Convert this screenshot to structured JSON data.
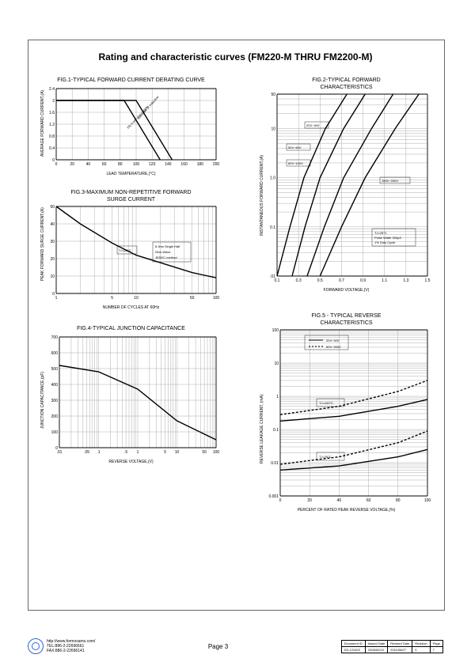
{
  "page_title": "Rating and characteristic curves (FM220-M THRU FM2200-M)",
  "fig1": {
    "title": "FIG.1-TYPICAL FORWARD CURRENT DERATING CURVE",
    "ylabel": "AVERAGE FORWARD CURRENT,(A)",
    "xlabel": "LEAD TEMPERATURE,(°C)",
    "x_ticks": [
      0,
      20,
      40,
      60,
      80,
      100,
      120,
      140,
      160,
      180,
      200
    ],
    "y_ticks": [
      0,
      0.4,
      0.8,
      1.2,
      1.6,
      2.0,
      2.4
    ],
    "ylim": [
      0,
      2.4
    ],
    "xlim": [
      0,
      200
    ],
    "series": [
      {
        "pts": [
          [
            0,
            2.0
          ],
          [
            85,
            2.0
          ],
          [
            130,
            0
          ]
        ]
      },
      {
        "pts": [
          [
            0,
            2.0
          ],
          [
            100,
            2.0
          ],
          [
            145,
            0
          ]
        ]
      }
    ],
    "anno1": "Resistive or Inductive",
    "anno2": "FR-4 with 2oz copper"
  },
  "fig2": {
    "title": "FIG.2-TYPICAL FORWARD",
    "subtitle": "CHARACTERISTICS",
    "ylabel": "INSTANTANEOUS FORWARD CURRENT,(A)",
    "xlabel": "FORWARD VOLTAGE,(V)",
    "x_ticks": [
      0.1,
      0.3,
      0.5,
      0.7,
      0.9,
      1.1,
      1.3,
      1.5
    ],
    "y_ticks": [
      0.01,
      0.1,
      1.0,
      10,
      50
    ],
    "y_labels": [
      ".01",
      "0.1",
      "1.0",
      "10",
      "50"
    ],
    "xlim": [
      0.1,
      1.5
    ],
    "ylim": [
      0.01,
      50
    ],
    "series": [
      {
        "pts": [
          [
            0.1,
            0.01
          ],
          [
            0.22,
            0.1
          ],
          [
            0.35,
            1.0
          ],
          [
            0.55,
            10
          ],
          [
            0.75,
            50
          ]
        ]
      },
      {
        "pts": [
          [
            0.24,
            0.01
          ],
          [
            0.36,
            0.1
          ],
          [
            0.5,
            1.0
          ],
          [
            0.72,
            10
          ],
          [
            0.92,
            50
          ]
        ]
      },
      {
        "pts": [
          [
            0.38,
            0.01
          ],
          [
            0.54,
            0.1
          ],
          [
            0.72,
            1.0
          ],
          [
            0.98,
            10
          ],
          [
            1.18,
            50
          ]
        ]
      },
      {
        "pts": [
          [
            0.5,
            0.01
          ],
          [
            0.7,
            0.1
          ],
          [
            0.92,
            1.0
          ],
          [
            1.2,
            10
          ],
          [
            1.42,
            50
          ]
        ]
      }
    ],
    "anno1": "20V~40V",
    "anno2": "50V~60V",
    "anno3": "80V~100V",
    "anno4": "150V~200V",
    "cond": "TJ=25°C\nPulse Width 300μS\n1% Duty Cycle"
  },
  "fig3": {
    "title": "FIG.3-MAXIMUM NON-REPETITIVE FORWARD",
    "subtitle": "SURGE CURRENT",
    "ylabel": "PEAK FORWARD SURGE CURRENT,(A)",
    "xlabel": "NUMBER OF CYCLES AT 60Hz",
    "x_ticks": [
      1,
      5,
      10,
      50,
      100
    ],
    "y_ticks": [
      0,
      10,
      20,
      30,
      40,
      50
    ],
    "xlim": [
      1,
      100
    ],
    "ylim": [
      0,
      50
    ],
    "series": [
      {
        "pts": [
          [
            1,
            50
          ],
          [
            2,
            40
          ],
          [
            5,
            29
          ],
          [
            10,
            22
          ],
          [
            50,
            12
          ],
          [
            100,
            9
          ]
        ]
      }
    ],
    "cond": "TJ=25°C",
    "anno": "8.3ms Single Half\nSine-Wave\nJEDEC method"
  },
  "fig4": {
    "title": "FIG.4-TYPICAL JUNCTION CAPACITANCE",
    "ylabel": "JUNCTION CAPACITANCE,(pF)",
    "xlabel": "REVERSE VOLTAGE,(V)",
    "x_ticks": [
      0.01,
      0.05,
      0.1,
      0.5,
      1,
      5,
      10,
      50,
      100
    ],
    "x_labels": [
      ".01",
      ".05",
      ".1",
      ".5",
      "1",
      "5",
      "10",
      "50",
      "100"
    ],
    "y_ticks": [
      0,
      100,
      200,
      300,
      400,
      500,
      600,
      700
    ],
    "xlim": [
      0.01,
      100
    ],
    "ylim": [
      0,
      700
    ],
    "series": [
      {
        "pts": [
          [
            0.01,
            520
          ],
          [
            0.1,
            480
          ],
          [
            1,
            370
          ],
          [
            10,
            170
          ],
          [
            100,
            50
          ]
        ]
      }
    ]
  },
  "fig5": {
    "title": "FIG.5 - TYPICAL REVERSE",
    "subtitle": "CHARACTERISTICS",
    "ylabel": "REVERSE LEAKAGE CURRENT, (mA)",
    "xlabel": "PERCENT OF RATED PEAK REVERSE VOLTAGE,(%)",
    "x_ticks": [
      0,
      20,
      40,
      60,
      80,
      100
    ],
    "y_ticks": [
      0.001,
      0.01,
      0.1,
      1,
      10,
      100
    ],
    "y_labels": [
      "0.001",
      "0.01",
      "0.1",
      "1",
      "10",
      "100"
    ],
    "xlim": [
      0,
      100
    ],
    "ylim": [
      0.001,
      100
    ],
    "series": [
      {
        "pts": [
          [
            0,
            0.18
          ],
          [
            40,
            0.25
          ],
          [
            80,
            0.5
          ],
          [
            100,
            0.8
          ]
        ],
        "dash": false
      },
      {
        "pts": [
          [
            0,
            0.28
          ],
          [
            40,
            0.5
          ],
          [
            80,
            1.4
          ],
          [
            100,
            3
          ]
        ],
        "dash": true
      },
      {
        "pts": [
          [
            0,
            0.006
          ],
          [
            40,
            0.008
          ],
          [
            80,
            0.015
          ],
          [
            100,
            0.025
          ]
        ],
        "dash": false
      },
      {
        "pts": [
          [
            0,
            0.009
          ],
          [
            40,
            0.015
          ],
          [
            80,
            0.04
          ],
          [
            100,
            0.09
          ]
        ],
        "dash": true
      }
    ],
    "legend1": "20V~40V",
    "legend2": "50V~200V",
    "anno1": "TJ=100°C",
    "anno2": "TJ=25°C"
  },
  "footer": {
    "url": "http://www.formosams.com/",
    "tel": "TEL:886-2-22696661",
    "fax": "FAX:886-2-22696141",
    "page": "Page 3",
    "doc": {
      "h": [
        "Document ID",
        "Issued Date",
        "Revised Date",
        "Revision",
        "Page"
      ],
      "v": [
        "DS-121520",
        "2006/02/10",
        "2011/08/27",
        "0",
        "7"
      ]
    }
  }
}
